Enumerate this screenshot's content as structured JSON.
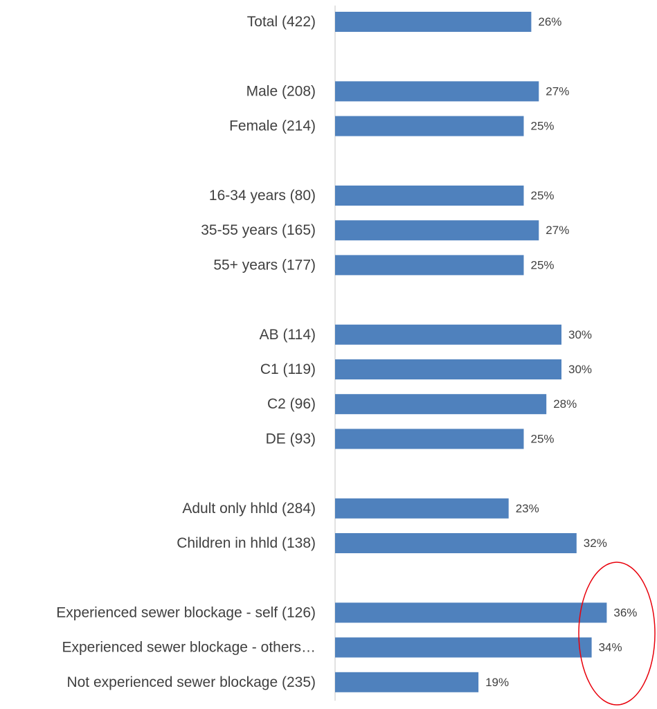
{
  "chart_data": {
    "type": "bar",
    "orientation": "horizontal",
    "title": "",
    "xlabel": "",
    "ylabel": "",
    "xlim": [
      0,
      50
    ],
    "grid": false,
    "legend": "none",
    "bar_color": "#4F81BD",
    "axis_color": "#D9D9D9",
    "highlight_color": "#E8000B",
    "highlight_annotation": "red circle around the 36% and 34% value labels",
    "categories": [
      "Total (422)",
      "Male (208)",
      "Female (214)",
      "16-34 years (80)",
      "35-55 years (165)",
      "55+ years (177)",
      "AB (114)",
      "C1 (119)",
      "C2 (96)",
      "DE (93)",
      "Adult only hhld (284)",
      "Children in hhld (138)",
      "Experienced sewer blockage - self (126)",
      "Experienced sewer blockage - others…",
      "Not experienced sewer blockage (235)"
    ],
    "values": [
      26,
      27,
      25,
      25,
      27,
      25,
      30,
      30,
      28,
      25,
      23,
      32,
      36,
      34,
      19
    ],
    "value_labels": [
      "26%",
      "27%",
      "25%",
      "25%",
      "27%",
      "25%",
      "30%",
      "30%",
      "28%",
      "25%",
      "23%",
      "32%",
      "36%",
      "34%",
      "19%"
    ]
  }
}
